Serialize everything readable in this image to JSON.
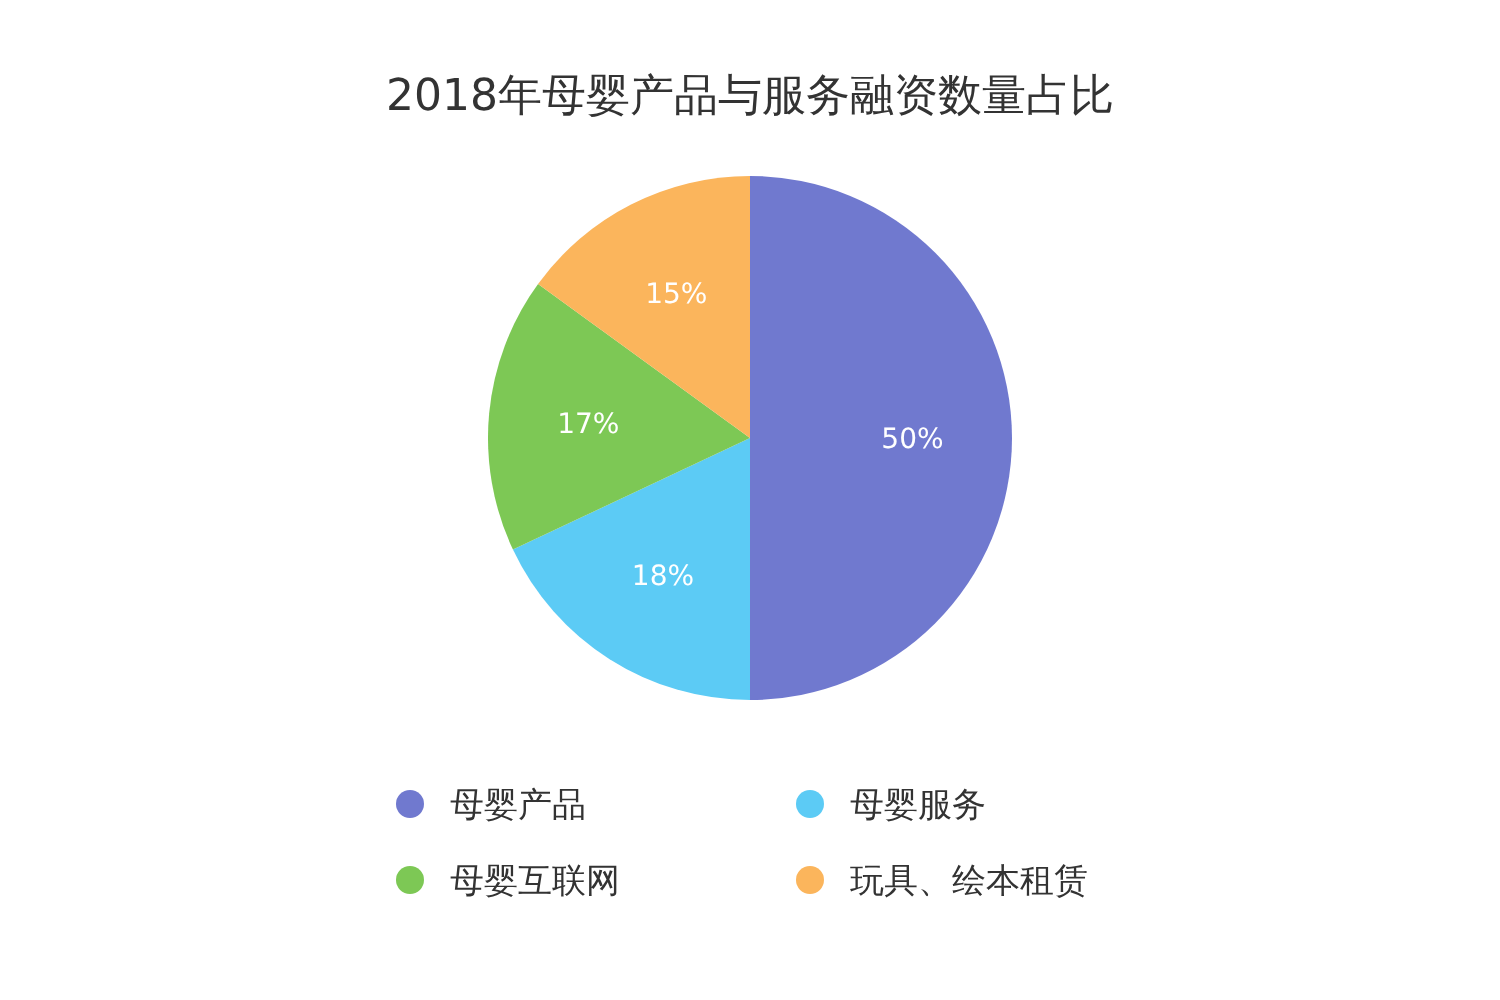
{
  "chart_data": {
    "type": "pie",
    "title": "2018年母婴产品与服务融资数量占比",
    "categories": [
      "母婴产品",
      "母婴服务",
      "母婴互联网",
      "玩具、绘本租赁"
    ],
    "values": [
      50,
      18,
      17,
      15
    ],
    "value_labels": [
      "50%",
      "18%",
      "17%",
      "15%"
    ],
    "colors": [
      "#7079cf",
      "#5ccbf5",
      "#7dc855",
      "#fbb55c"
    ],
    "legend": "bottom"
  }
}
